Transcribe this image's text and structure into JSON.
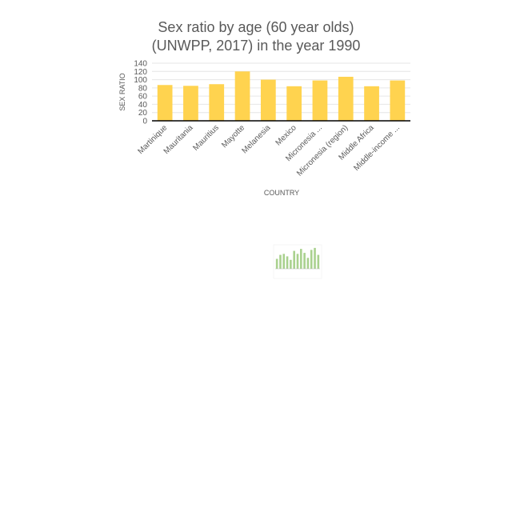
{
  "chart_data": {
    "type": "bar",
    "title_lines": [
      "Sex ratio by age (60 year olds)",
      "(UNWPP, 2017) in the year 1990"
    ],
    "xlabel": "COUNTRY",
    "ylabel": "SEX RATIO",
    "categories": [
      "Martinique",
      "Mauritania",
      "Mauritius",
      "Mayotte",
      "Melanesia",
      "Mexico",
      "Micronesia ...",
      "Micronesia (region)",
      "Middle Africa",
      "Middle-income ..."
    ],
    "values": [
      87,
      85,
      89,
      120,
      100,
      84,
      98,
      107,
      84,
      98
    ],
    "ylim": [
      0,
      140
    ],
    "yticks": [
      0,
      20,
      40,
      60,
      80,
      100,
      120,
      140
    ],
    "grid": true,
    "legend": "none",
    "bar_color": "#ffd34f"
  },
  "thumbnail": {
    "bar_color": "#a9d18e",
    "values": [
      20,
      28,
      30,
      25,
      18,
      36,
      30,
      40,
      32,
      22,
      38,
      42,
      28
    ]
  }
}
